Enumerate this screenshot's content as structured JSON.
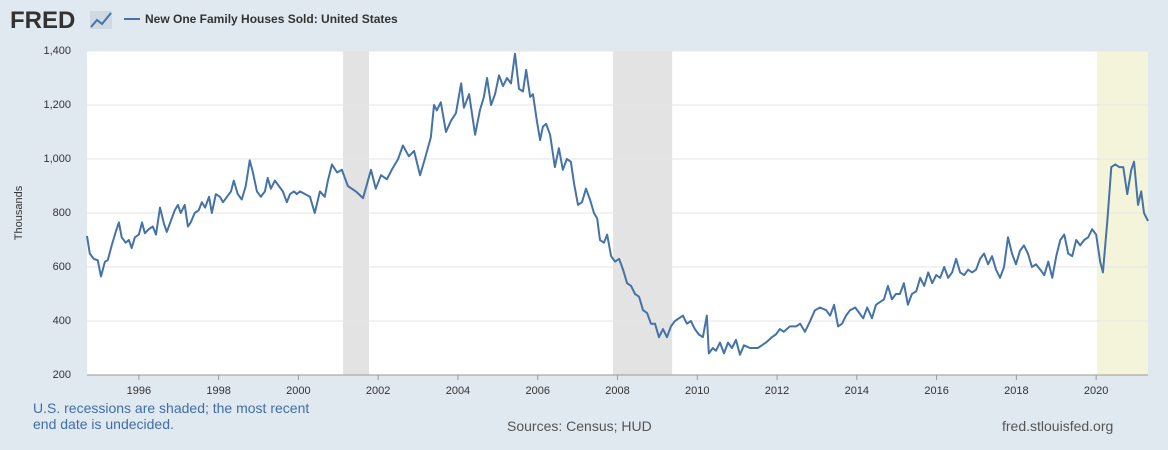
{
  "chart_data": {
    "type": "line",
    "logo": "FRED",
    "title": "New One Family Houses Sold: United States",
    "y_label": "Thousands",
    "note": "U.S. recessions are shaded; the most recent end date is undecided.",
    "source": "Sources: Census; HUD",
    "site": "fred.stlouisfed.org",
    "xlim": [
      1994.7,
      2021.3
    ],
    "xticks": [
      1996,
      1998,
      2000,
      2002,
      2004,
      2006,
      2008,
      2010,
      2012,
      2014,
      2016,
      2018,
      2020
    ],
    "ylim": [
      200,
      1400
    ],
    "yticks": [
      200,
      400,
      600,
      800,
      {
        "value": 1000,
        "label": "1,000"
      },
      {
        "value": 1200,
        "label": "1,200"
      },
      {
        "value": 1400,
        "label": "1,400"
      }
    ],
    "grid": true,
    "recession_color": "#e3e3e3",
    "undecided_color": "#f4f4da",
    "recessions": [
      {
        "start": 2001.12,
        "end": 2001.77
      },
      {
        "start": 2007.89,
        "end": 2009.37
      },
      {
        "start": 2020.02,
        "end": 2021.3,
        "undecided": true
      }
    ],
    "series": [
      {
        "name": "New One Family Houses Sold: United States",
        "color": "#4572a7",
        "x": [
          1994.7,
          1994.77,
          1994.87,
          1994.97,
          1995.05,
          1995.15,
          1995.22,
          1995.32,
          1995.42,
          1995.5,
          1995.57,
          1995.67,
          1995.75,
          1995.82,
          1995.9,
          1996.0,
          1996.08,
          1996.15,
          1996.25,
          1996.35,
          1996.43,
          1996.53,
          1996.63,
          1996.7,
          1996.8,
          1996.9,
          1996.98,
          1997.05,
          1997.15,
          1997.23,
          1997.3,
          1997.4,
          1997.5,
          1997.58,
          1997.66,
          1997.76,
          1997.83,
          1997.93,
          1998.03,
          1998.11,
          1998.21,
          1998.31,
          1998.38,
          1998.48,
          1998.58,
          1998.68,
          1998.78,
          1998.86,
          1998.96,
          1999.06,
          1999.16,
          1999.23,
          1999.31,
          1999.41,
          1999.51,
          1999.61,
          1999.71,
          1999.79,
          1999.89,
          1999.96,
          2000.04,
          2000.29,
          2000.41,
          2000.54,
          2000.66,
          2000.74,
          2000.84,
          2000.97,
          2001.09,
          2001.24,
          2001.44,
          2001.62,
          2001.82,
          2001.94,
          2002.07,
          2002.22,
          2002.34,
          2002.5,
          2002.62,
          2002.77,
          2002.9,
          2003.05,
          2003.17,
          2003.32,
          2003.4,
          2003.47,
          2003.57,
          2003.7,
          2003.82,
          2003.95,
          2004.08,
          2004.15,
          2004.28,
          2004.43,
          2004.55,
          2004.65,
          2004.73,
          2004.83,
          2004.93,
          2005.03,
          2005.13,
          2005.23,
          2005.33,
          2005.43,
          2005.53,
          2005.63,
          2005.71,
          2005.81,
          2005.88,
          2005.98,
          2006.06,
          2006.13,
          2006.21,
          2006.31,
          2006.43,
          2006.53,
          2006.63,
          2006.73,
          2006.83,
          2006.91,
          2007.01,
          2007.11,
          2007.21,
          2007.31,
          2007.41,
          2007.49,
          2007.56,
          2007.66,
          2007.74,
          2007.84,
          2007.94,
          2008.04,
          2008.14,
          2008.24,
          2008.34,
          2008.44,
          2008.54,
          2008.64,
          2008.74,
          2008.84,
          2008.94,
          2009.04,
          2009.14,
          2009.24,
          2009.34,
          2009.44,
          2009.54,
          2009.64,
          2009.74,
          2009.84,
          2009.94,
          2010.04,
          2010.14,
          2010.24,
          2010.29,
          2010.39,
          2010.47,
          2010.57,
          2010.67,
          2010.77,
          2010.87,
          2010.97,
          2011.07,
          2011.17,
          2011.32,
          2011.52,
          2011.72,
          2011.87,
          2011.97,
          2012.07,
          2012.17,
          2012.32,
          2012.48,
          2012.58,
          2012.7,
          2012.83,
          2012.95,
          2013.08,
          2013.23,
          2013.33,
          2013.43,
          2013.53,
          2013.63,
          2013.73,
          2013.83,
          2013.96,
          2014.06,
          2014.16,
          2014.26,
          2014.38,
          2014.48,
          2014.58,
          2014.68,
          2014.78,
          2014.88,
          2014.98,
          2015.08,
          2015.18,
          2015.28,
          2015.38,
          2015.49,
          2015.59,
          2015.69,
          2015.79,
          2015.89,
          2015.99,
          2016.09,
          2016.19,
          2016.29,
          2016.39,
          2016.49,
          2016.59,
          2016.69,
          2016.79,
          2016.89,
          2016.99,
          2017.09,
          2017.19,
          2017.29,
          2017.39,
          2017.49,
          2017.59,
          2017.69,
          2017.79,
          2017.89,
          2017.99,
          2018.09,
          2018.19,
          2018.29,
          2018.39,
          2018.49,
          2018.6,
          2018.7,
          2018.8,
          2018.9,
          2019.0,
          2019.1,
          2019.2,
          2019.3,
          2019.4,
          2019.5,
          2019.6,
          2019.7,
          2019.8,
          2019.9,
          2020.0,
          2020.1,
          2020.17,
          2020.28,
          2020.38,
          2020.48,
          2020.58,
          2020.68,
          2020.78,
          2020.88,
          2020.95,
          2021.05,
          2021.13,
          2021.2,
          2021.3
        ],
        "values": [
          715,
          650,
          630,
          625,
          565,
          620,
          625,
          680,
          730,
          765,
          710,
          690,
          700,
          670,
          710,
          720,
          765,
          725,
          740,
          750,
          720,
          820,
          760,
          730,
          770,
          810,
          830,
          800,
          830,
          750,
          765,
          800,
          810,
          840,
          820,
          860,
          800,
          870,
          860,
          840,
          860,
          880,
          920,
          870,
          850,
          900,
          995,
          950,
          880,
          860,
          880,
          930,
          890,
          920,
          900,
          880,
          840,
          870,
          880,
          870,
          880,
          860,
          800,
          880,
          860,
          920,
          980,
          950,
          960,
          900,
          880,
          855,
          960,
          890,
          940,
          925,
          960,
          1000,
          1050,
          1010,
          1030,
          940,
          1000,
          1080,
          1200,
          1180,
          1210,
          1100,
          1140,
          1170,
          1280,
          1190,
          1240,
          1090,
          1180,
          1230,
          1300,
          1200,
          1240,
          1310,
          1270,
          1300,
          1280,
          1390,
          1260,
          1250,
          1330,
          1230,
          1240,
          1140,
          1070,
          1120,
          1130,
          1090,
          970,
          1040,
          960,
          1000,
          990,
          910,
          830,
          840,
          890,
          850,
          800,
          780,
          700,
          690,
          720,
          640,
          620,
          630,
          590,
          540,
          530,
          500,
          490,
          440,
          430,
          390,
          390,
          340,
          370,
          340,
          380,
          400,
          410,
          420,
          390,
          400,
          370,
          350,
          340,
          420,
          280,
          300,
          290,
          320,
          280,
          320,
          300,
          330,
          275,
          310,
          300,
          300,
          320,
          340,
          350,
          370,
          360,
          380,
          380,
          390,
          360,
          400,
          440,
          450,
          440,
          420,
          460,
          380,
          390,
          420,
          440,
          450,
          430,
          410,
          450,
          410,
          460,
          470,
          480,
          530,
          480,
          500,
          500,
          540,
          460,
          500,
          510,
          560,
          530,
          580,
          540,
          570,
          560,
          600,
          560,
          580,
          630,
          580,
          570,
          590,
          580,
          590,
          630,
          650,
          610,
          640,
          590,
          560,
          600,
          710,
          650,
          610,
          660,
          680,
          650,
          600,
          610,
          590,
          570,
          620,
          560,
          640,
          700,
          720,
          650,
          640,
          700,
          680,
          700,
          710,
          740,
          720,
          620,
          580,
          770,
          970,
          980,
          970,
          970,
          870,
          960,
          990,
          830,
          880,
          800,
          770
        ]
      }
    ]
  }
}
